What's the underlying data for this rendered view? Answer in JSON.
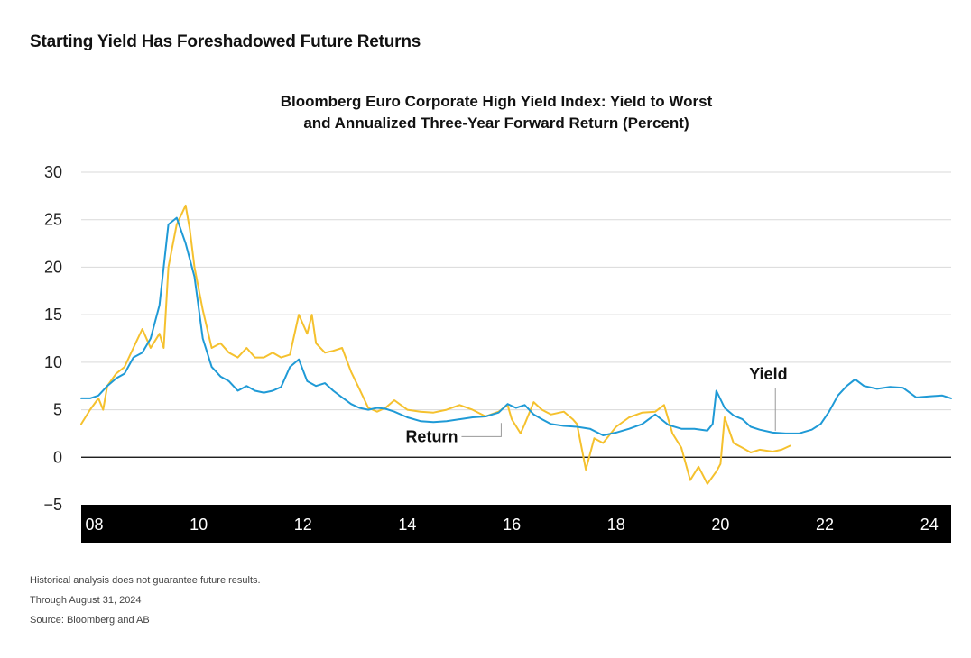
{
  "headline": "Starting Yield Has Foreshadowed Future Returns",
  "footnotes": {
    "disclaimer": "Historical analysis does not guarantee future results.",
    "through": "Through August 31, 2024",
    "source": "Source: Bloomberg and AB"
  },
  "colors": {
    "yield": "#1f9ad6",
    "return": "#f5c12e",
    "axis_band": "#000000",
    "grid": "#d9d9d9"
  },
  "chart_data": {
    "type": "line",
    "title_line1": "Bloomberg Euro Corporate High Yield Index: Yield to Worst",
    "title_line2": "and Annualized Three-Year Forward Return (Percent)",
    "xlim": [
      2008.0,
      2024.67
    ],
    "ylim": [
      -5,
      30
    ],
    "yticks": [
      -5,
      0,
      5,
      10,
      15,
      20,
      25,
      30
    ],
    "xticks": [
      {
        "value": 2008.25,
        "label": "08"
      },
      {
        "value": 2010.25,
        "label": "10"
      },
      {
        "value": 2012.25,
        "label": "12"
      },
      {
        "value": 2014.25,
        "label": "14"
      },
      {
        "value": 2016.25,
        "label": "16"
      },
      {
        "value": 2018.25,
        "label": "18"
      },
      {
        "value": 2020.25,
        "label": "20"
      },
      {
        "value": 2022.25,
        "label": "22"
      },
      {
        "value": 2024.25,
        "label": "24"
      }
    ],
    "grid": true,
    "series": [
      {
        "name": "Yield",
        "color": "#1f9ad6",
        "x": [
          2008.0,
          2008.17,
          2008.33,
          2008.5,
          2008.67,
          2008.83,
          2009.0,
          2009.17,
          2009.33,
          2009.5,
          2009.67,
          2009.83,
          2010.0,
          2010.17,
          2010.33,
          2010.5,
          2010.67,
          2010.83,
          2011.0,
          2011.17,
          2011.33,
          2011.5,
          2011.67,
          2011.83,
          2012.0,
          2012.17,
          2012.33,
          2012.5,
          2012.67,
          2012.83,
          2013.0,
          2013.17,
          2013.33,
          2013.5,
          2013.67,
          2013.83,
          2014.0,
          2014.25,
          2014.5,
          2014.75,
          2015.0,
          2015.25,
          2015.5,
          2015.75,
          2016.0,
          2016.17,
          2016.33,
          2016.5,
          2016.67,
          2016.83,
          2017.0,
          2017.25,
          2017.5,
          2017.75,
          2018.0,
          2018.25,
          2018.5,
          2018.75,
          2019.0,
          2019.25,
          2019.5,
          2019.75,
          2020.0,
          2020.1,
          2020.17,
          2020.33,
          2020.5,
          2020.67,
          2020.83,
          2021.0,
          2021.25,
          2021.5,
          2021.75,
          2022.0,
          2022.17,
          2022.33,
          2022.5,
          2022.67,
          2022.83,
          2023.0,
          2023.25,
          2023.5,
          2023.75,
          2024.0,
          2024.25,
          2024.5,
          2024.67
        ],
        "y": [
          6.2,
          6.2,
          6.5,
          7.5,
          8.3,
          8.8,
          10.5,
          11.0,
          12.5,
          16.0,
          24.5,
          25.2,
          22.5,
          19.0,
          12.5,
          9.5,
          8.5,
          8.0,
          7.0,
          7.5,
          7.0,
          6.8,
          7.0,
          7.4,
          9.5,
          10.3,
          8.0,
          7.5,
          7.8,
          7.0,
          6.3,
          5.6,
          5.2,
          5.0,
          5.2,
          5.1,
          4.8,
          4.2,
          3.8,
          3.7,
          3.8,
          4.0,
          4.2,
          4.3,
          4.7,
          5.6,
          5.2,
          5.5,
          4.5,
          4.0,
          3.5,
          3.3,
          3.2,
          3.0,
          2.3,
          2.6,
          3.0,
          3.5,
          4.5,
          3.4,
          3.0,
          3.0,
          2.8,
          3.5,
          7.0,
          5.2,
          4.4,
          4.0,
          3.2,
          2.9,
          2.6,
          2.5,
          2.5,
          2.9,
          3.5,
          4.8,
          6.5,
          7.5,
          8.2,
          7.5,
          7.2,
          7.4,
          7.3,
          6.3,
          6.4,
          6.5,
          6.2
        ]
      },
      {
        "name": "Return",
        "color": "#f5c12e",
        "x": [
          2008.0,
          2008.17,
          2008.33,
          2008.42,
          2008.5,
          2008.67,
          2008.83,
          2009.0,
          2009.17,
          2009.33,
          2009.5,
          2009.58,
          2009.67,
          2009.83,
          2010.0,
          2010.08,
          2010.17,
          2010.33,
          2010.5,
          2010.67,
          2010.83,
          2011.0,
          2011.17,
          2011.33,
          2011.5,
          2011.67,
          2011.83,
          2012.0,
          2012.17,
          2012.33,
          2012.42,
          2012.5,
          2012.67,
          2012.83,
          2013.0,
          2013.17,
          2013.33,
          2013.5,
          2013.67,
          2013.83,
          2014.0,
          2014.25,
          2014.5,
          2014.75,
          2015.0,
          2015.25,
          2015.5,
          2015.75,
          2016.0,
          2016.17,
          2016.25,
          2016.42,
          2016.5,
          2016.67,
          2016.83,
          2017.0,
          2017.25,
          2017.42,
          2017.5,
          2017.67,
          2017.83,
          2018.0,
          2018.25,
          2018.5,
          2018.75,
          2019.0,
          2019.17,
          2019.33,
          2019.5,
          2019.67,
          2019.83,
          2020.0,
          2020.17,
          2020.25,
          2020.33,
          2020.5,
          2020.67,
          2020.83,
          2021.0,
          2021.25,
          2021.42,
          2021.58
        ],
        "y": [
          3.5,
          5.0,
          6.2,
          5.0,
          7.5,
          8.8,
          9.5,
          11.5,
          13.5,
          11.5,
          13.0,
          11.5,
          20.0,
          24.5,
          26.5,
          24.0,
          20.0,
          15.5,
          11.5,
          12.0,
          11.0,
          10.5,
          11.5,
          10.5,
          10.5,
          11.0,
          10.5,
          10.8,
          15.0,
          13.0,
          15.0,
          12.0,
          11.0,
          11.2,
          11.5,
          9.0,
          7.2,
          5.2,
          4.8,
          5.2,
          6.0,
          5.0,
          4.8,
          4.7,
          5.0,
          5.5,
          5.0,
          4.3,
          4.8,
          5.5,
          4.0,
          2.5,
          3.5,
          5.8,
          5.0,
          4.5,
          4.8,
          4.0,
          3.5,
          -1.3,
          2.0,
          1.5,
          3.2,
          4.2,
          4.7,
          4.8,
          5.5,
          2.5,
          1.0,
          -2.4,
          -1.0,
          -2.8,
          -1.5,
          -0.7,
          4.2,
          1.5,
          1.0,
          0.5,
          0.8,
          0.6,
          0.8,
          1.2
        ]
      }
    ],
    "annotations": [
      {
        "text": "Yield",
        "series": "Yield",
        "x": 2021.3,
        "y": 2.6,
        "label_x": 2021.25,
        "label_y": 8.2,
        "anchor": "start"
      },
      {
        "text": "Return",
        "series": "Return",
        "x": 2016.1,
        "y": 3.8,
        "label_x": 2014.7,
        "label_y": 1.6,
        "anchor": "end"
      }
    ]
  }
}
